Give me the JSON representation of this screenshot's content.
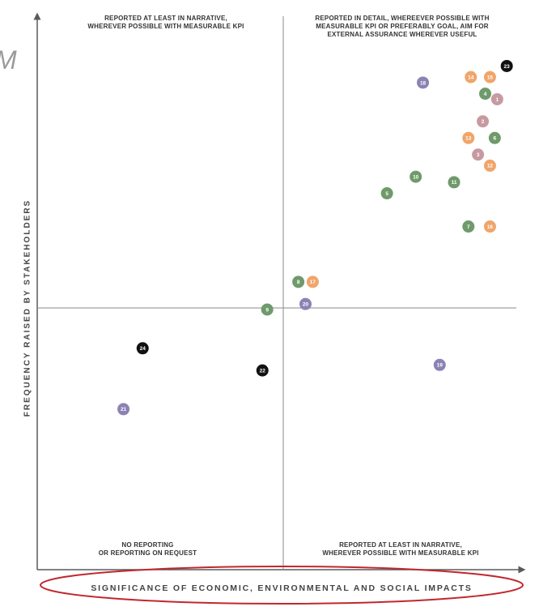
{
  "page_fragment": "M",
  "chart_data": {
    "type": "scatter",
    "xlabel": "SIGNIFICANCE OF ECONOMIC, ENVIRONMENTAL AND SOCIAL IMPACTS",
    "ylabel": "FREQUENCY RAISED BY STAKEHOLDERS",
    "grid": false,
    "quadrants": {
      "top_left": [
        "REPORTED AT LEAST IN NARRATIVE,",
        "WHEREVER POSSIBLE WITH MEASURABLE KPI"
      ],
      "top_right": [
        "REPORTED IN DETAIL, WHEREEVER POSSIBLE WITH",
        "MEASURABLE KPI OR PREFERABLY GOAL, AIM FOR",
        "EXTERNAL ASSURANCE WHEREVER USEFUL"
      ],
      "bottom_left": [
        "NO REPORTING",
        "OR REPORTING ON REQUEST"
      ],
      "bottom_right": [
        "REPORTED AT LEAST IN NARRATIVE,",
        "WHEREVER POSSIBLE WITH MEASURABLE KPI"
      ]
    },
    "colors": {
      "orange": "#f0a56a",
      "green": "#6f9a6b",
      "purple": "#8c82b4",
      "mauve": "#c79aa2",
      "black": "#111111"
    },
    "points": [
      {
        "label": "1",
        "x": 0.96,
        "y": 0.85,
        "color": "mauve"
      },
      {
        "label": "2",
        "x": 0.93,
        "y": 0.81,
        "color": "mauve"
      },
      {
        "label": "3",
        "x": 0.92,
        "y": 0.75,
        "color": "mauve"
      },
      {
        "label": "4",
        "x": 0.935,
        "y": 0.86,
        "color": "green"
      },
      {
        "label": "5",
        "x": 0.73,
        "y": 0.68,
        "color": "green"
      },
      {
        "label": "6",
        "x": 0.955,
        "y": 0.78,
        "color": "green"
      },
      {
        "label": "7",
        "x": 0.9,
        "y": 0.62,
        "color": "green"
      },
      {
        "label": "8",
        "x": 0.545,
        "y": 0.52,
        "color": "green"
      },
      {
        "label": "9",
        "x": 0.48,
        "y": 0.47,
        "color": "green"
      },
      {
        "label": "10",
        "x": 0.79,
        "y": 0.71,
        "color": "green"
      },
      {
        "label": "11",
        "x": 0.87,
        "y": 0.7,
        "color": "green"
      },
      {
        "label": "12",
        "x": 0.945,
        "y": 0.73,
        "color": "orange"
      },
      {
        "label": "13",
        "x": 0.9,
        "y": 0.78,
        "color": "orange"
      },
      {
        "label": "14",
        "x": 0.905,
        "y": 0.89,
        "color": "orange"
      },
      {
        "label": "15",
        "x": 0.945,
        "y": 0.89,
        "color": "orange"
      },
      {
        "label": "16",
        "x": 0.945,
        "y": 0.62,
        "color": "orange"
      },
      {
        "label": "17",
        "x": 0.575,
        "y": 0.52,
        "color": "orange"
      },
      {
        "label": "18",
        "x": 0.805,
        "y": 0.88,
        "color": "purple"
      },
      {
        "label": "19",
        "x": 0.84,
        "y": 0.37,
        "color": "purple"
      },
      {
        "label": "20",
        "x": 0.56,
        "y": 0.48,
        "color": "purple"
      },
      {
        "label": "21",
        "x": 0.18,
        "y": 0.29,
        "color": "purple"
      },
      {
        "label": "22",
        "x": 0.47,
        "y": 0.36,
        "color": "black"
      },
      {
        "label": "23",
        "x": 0.98,
        "y": 0.91,
        "color": "black"
      },
      {
        "label": "24",
        "x": 0.22,
        "y": 0.4,
        "color": "black"
      }
    ]
  }
}
